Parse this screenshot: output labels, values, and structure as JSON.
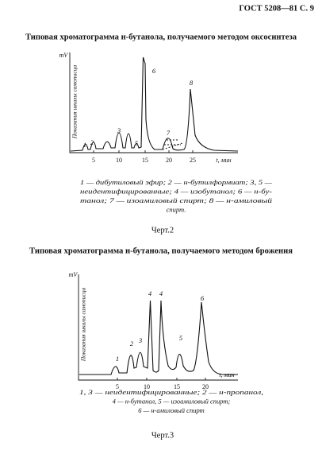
{
  "header": "ГОСТ 5208—81 С. 9",
  "figures": [
    {
      "title": "Типовая хроматограмма н-бутанола, получаемого методом оксосинтеза",
      "y_unit": "mV",
      "y_label": "Показания шкалы самописца",
      "x_ticks": [
        "5",
        "10",
        "15",
        "20",
        "25"
      ],
      "x_label": "t, мин",
      "peak_labels": [
        "1",
        "2",
        "3",
        "5",
        "6",
        "7",
        "8"
      ],
      "caption": [
        "1 — дибутиловый эфир; 2 — н-бутилформиат; 3, 5 —",
        "неидентифицированные; 4 — изобутанол; 6 — н-бу-",
        "танол;  7 — изоамиловый спирт;  8 — н-амиловый",
        "спирт."
      ],
      "figure_label": "Черт.2"
    },
    {
      "title": "Типовая хроматограмма н-бутанола, получаемого методом брожения",
      "y_unit": "mV",
      "y_label": "Показания шкалы самописца",
      "x_ticks": [
        "5",
        "10",
        "15",
        "20"
      ],
      "x_label": "t, мин",
      "peak_labels": [
        "1",
        "2",
        "3",
        "4",
        "4",
        "5",
        "6"
      ],
      "caption": [
        "1, 3 — неидентифицированные; 2 — н-пропанол,",
        "4 — н-бутанол,      5 — изоамиловый спирт;",
        "6 — н-амиловый спирт"
      ],
      "figure_label": "Черт.3"
    }
  ]
}
